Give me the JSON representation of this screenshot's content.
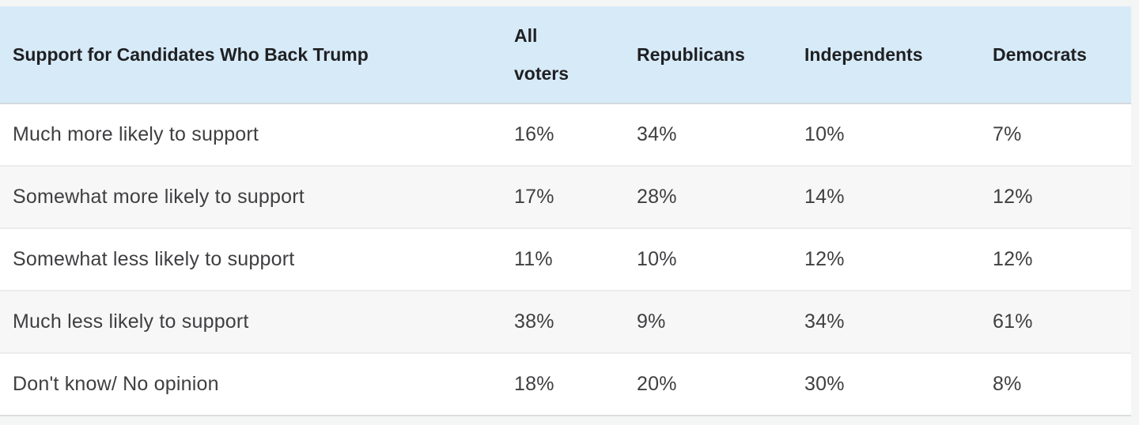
{
  "page": {
    "background": "#f4f5f5",
    "header_background": "#d7eaf7",
    "row_stripe": "#f7f7f7",
    "divider": "#ececec",
    "header_text_color": "#1f2023",
    "body_text_color": "#3f3f42"
  },
  "table": {
    "header": {
      "label": "Support for Candidates Who Back Trump",
      "columns": [
        "All\nvoters",
        "Republicans",
        "Independents",
        "Democrats"
      ]
    },
    "rows": [
      {
        "label": "Much more likely to support",
        "values": [
          "16%",
          "34%",
          "10%",
          "7%"
        ]
      },
      {
        "label": "Somewhat more likely to support",
        "values": [
          "17%",
          "28%",
          "14%",
          "12%"
        ]
      },
      {
        "label": "Somewhat less likely to support",
        "values": [
          "11%",
          "10%",
          "12%",
          "12%"
        ]
      },
      {
        "label": "Much less likely to support",
        "values": [
          "38%",
          "9%",
          "34%",
          "61%"
        ]
      },
      {
        "label": "Don't know/ No opinion",
        "values": [
          "18%",
          "20%",
          "30%",
          "8%"
        ]
      }
    ]
  },
  "chart_data": {
    "type": "table",
    "title": "Support for Candidates Who Back Trump",
    "columns": [
      "All voters",
      "Republicans",
      "Independents",
      "Democrats"
    ],
    "categories": [
      "Much more likely to support",
      "Somewhat more likely to support",
      "Somewhat less likely to support",
      "Much less likely to support",
      "Don't know/ No opinion"
    ],
    "series": [
      {
        "name": "All voters",
        "values": [
          16,
          17,
          11,
          38,
          18
        ]
      },
      {
        "name": "Republicans",
        "values": [
          34,
          28,
          10,
          9,
          20
        ]
      },
      {
        "name": "Independents",
        "values": [
          10,
          14,
          12,
          34,
          30
        ]
      },
      {
        "name": "Democrats",
        "values": [
          7,
          12,
          12,
          61,
          8
        ]
      }
    ],
    "unit": "%",
    "legend_position": "none",
    "grid": false
  }
}
